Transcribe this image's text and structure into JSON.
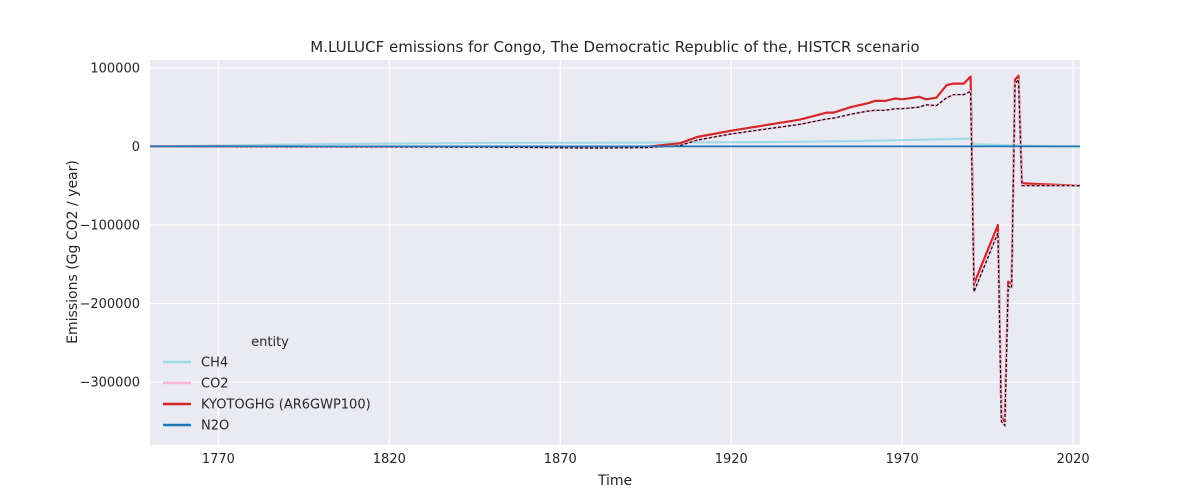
{
  "chart_data": {
    "type": "line",
    "title": "M.LULUCF emissions for Congo, The Democratic Republic of the, HISTCR scenario",
    "xlabel": "Time",
    "ylabel": "Emissions (Gg CO2 / year)",
    "xlim": [
      1750,
      2022
    ],
    "ylim": [
      -380000,
      110000
    ],
    "xticks": [
      1770,
      1820,
      1870,
      1920,
      1970,
      2020
    ],
    "yticks": [
      100000,
      0,
      -100000,
      -200000,
      -300000
    ],
    "ytick_labels": [
      "100000",
      "0",
      "−100000",
      "−200000",
      "−300000"
    ],
    "grid": true,
    "background": "#eaeaf2",
    "legend": {
      "title": "entity",
      "placement": "lower-left"
    },
    "series": [
      {
        "name": "CH4",
        "color": "#9edae5",
        "x": [
          1750,
          1800,
          1850,
          1900,
          1930,
          1960,
          1985,
          1990,
          1991,
          2005,
          2010,
          2015,
          2022
        ],
        "y": [
          0,
          3000,
          4500,
          5000,
          5500,
          7000,
          9500,
          10000,
          3000,
          1000,
          500,
          0,
          0
        ]
      },
      {
        "name": "CO2",
        "color": "#f7b6d2",
        "x": [
          1750,
          1850,
          1880,
          1895,
          1905,
          1910,
          1920,
          1930,
          1940,
          1948,
          1950,
          1955,
          1960,
          1962,
          1965,
          1968,
          1970,
          1975,
          1977,
          1980,
          1983,
          1985,
          1988,
          1990,
          1991,
          1998,
          1999,
          2000,
          2001,
          2002,
          2003,
          2004,
          2005,
          2006,
          2010,
          2022
        ],
        "y": [
          0,
          -1000,
          -2000,
          -1500,
          1000,
          8000,
          16000,
          22000,
          28000,
          35000,
          36000,
          41000,
          45000,
          46000,
          46000,
          48000,
          48000,
          50000,
          53000,
          52000,
          62000,
          66000,
          66000,
          70000,
          -185000,
          -110000,
          -350000,
          -355000,
          -178000,
          -180000,
          80000,
          85000,
          -50000,
          -50000,
          -50000,
          -50000
        ]
      },
      {
        "name": "KYOTOGHG (AR6GWP100)",
        "color": "#d62728",
        "x": [
          1750,
          1850,
          1880,
          1895,
          1905,
          1910,
          1920,
          1930,
          1940,
          1948,
          1950,
          1955,
          1960,
          1962,
          1965,
          1968,
          1970,
          1975,
          1977,
          1980,
          1983,
          1985,
          1988,
          1990,
          1991,
          1998,
          1999,
          2000,
          2001,
          2002,
          2003,
          2004,
          2005,
          2006,
          2010,
          2022
        ],
        "y": [
          0,
          -500,
          -1500,
          -500,
          4000,
          12000,
          20000,
          27000,
          34000,
          43000,
          43000,
          50000,
          55000,
          58000,
          58000,
          61000,
          60000,
          63000,
          60000,
          62000,
          78000,
          80000,
          80000,
          89000,
          -175000,
          -100000,
          -345000,
          -350000,
          -172000,
          -175000,
          85000,
          90000,
          -46000,
          -47000,
          -48000,
          -50000
        ]
      },
      {
        "name": "N2O",
        "color": "#1f77b4",
        "x": [
          1750,
          2022
        ],
        "y": [
          0,
          0
        ]
      }
    ]
  }
}
